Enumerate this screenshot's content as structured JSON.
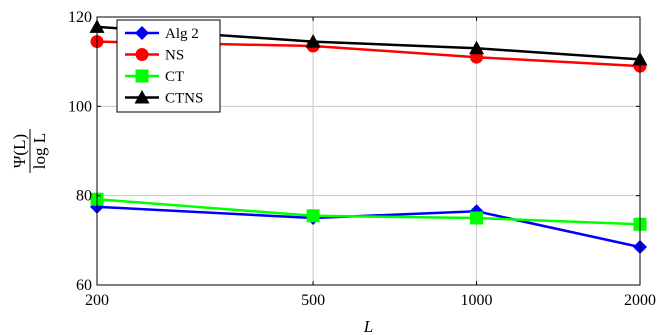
{
  "chart_data": {
    "type": "line",
    "x": [
      200,
      500,
      1000,
      2000
    ],
    "x_tick_labels": [
      "200",
      "500",
      "1000",
      "2000"
    ],
    "xlabel": "L",
    "ylabel": {
      "numerator": "Ψ(L)",
      "denominator": "log L"
    },
    "y_ticks": [
      60,
      80,
      100,
      120
    ],
    "y_tick_labels": [
      "60",
      "80",
      "100",
      "120"
    ],
    "ylim": [
      60,
      120
    ],
    "grid": true,
    "legend_position": "top-left",
    "series": [
      {
        "name": "Alg 2",
        "color": "#0000ff",
        "marker": "diamond",
        "values": [
          77.5,
          75.0,
          76.5,
          68.5
        ]
      },
      {
        "name": "NS",
        "color": "#ff0000",
        "marker": "circle",
        "values": [
          114.5,
          113.5,
          111.0,
          109.0
        ]
      },
      {
        "name": "CT",
        "color": "#00ff00",
        "marker": "square",
        "values": [
          79.2,
          75.5,
          75.0,
          73.6
        ]
      },
      {
        "name": "CTNS",
        "color": "#000000",
        "marker": "triangle",
        "values": [
          117.8,
          114.5,
          113.0,
          110.5
        ]
      }
    ]
  }
}
